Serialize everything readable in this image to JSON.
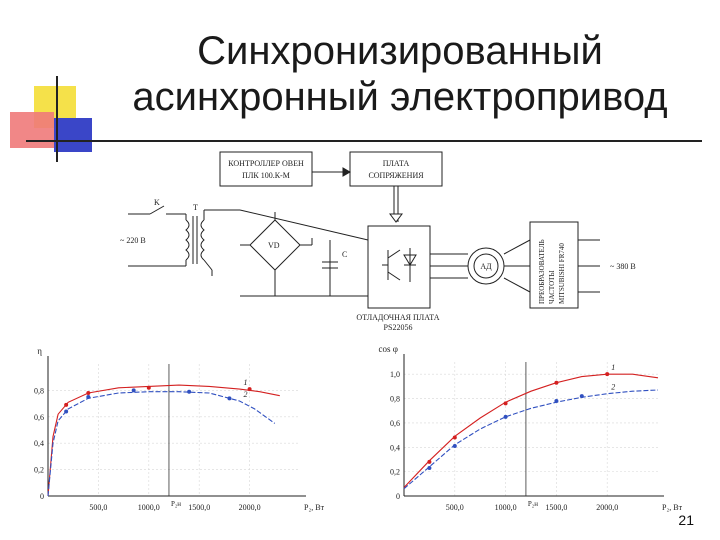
{
  "slide": {
    "title_line1": "Синхронизированный",
    "title_line2": "асинхронный электропривод",
    "page_number": "21"
  },
  "schematic": {
    "controller_line1": "КОНТРОЛЛЕР ОВЕН",
    "controller_line2": "ПЛК 100.К-М",
    "interface_line1": "ПЛАТА",
    "interface_line2": "СОПРЯЖЕНИЯ",
    "switch_label": "K",
    "transformer_label": "T",
    "supply_label": "~ 220 В",
    "bridge_label": "VD",
    "capacitor_label": "C",
    "motor_label": "АД",
    "converter_line1": "ПРЕОБРАЗОВАТЕЛЬ",
    "converter_line2": "ЧАСТОТЫ",
    "converter_line3": "MITSUBISHI FR740",
    "grid_label": "~ 380 В",
    "debug_line1": "ОТЛАДОЧНАЯ ПЛАТА",
    "debug_line2": "PS22056"
  },
  "chart_data": [
    {
      "type": "line",
      "ylabel": "η",
      "xlabel": "P₂, Вт",
      "xlim": [
        0,
        2500
      ],
      "ylim": [
        0,
        1.0
      ],
      "x_ticks": [
        "500,0",
        "1000,0",
        "1500,0",
        "2000,0"
      ],
      "y_ticks": [
        "0",
        "0,2",
        "0,4",
        "0,6",
        "0,8"
      ],
      "marker_label": "P₂н",
      "marker_x": 1200,
      "series": [
        {
          "name": "1",
          "color": "#d42020",
          "x": [
            0,
            50,
            100,
            200,
            400,
            700,
            1000,
            1300,
            1600,
            1900,
            2100,
            2300
          ],
          "y": [
            0,
            0.45,
            0.62,
            0.71,
            0.78,
            0.82,
            0.83,
            0.84,
            0.83,
            0.81,
            0.79,
            0.76
          ],
          "points_x": [
            180,
            400,
            1000,
            2000
          ],
          "points_y": [
            0.69,
            0.78,
            0.82,
            0.81
          ]
        },
        {
          "name": "2",
          "color": "#3050c0",
          "x": [
            0,
            50,
            100,
            200,
            400,
            700,
            1000,
            1300,
            1600,
            1900,
            2050,
            2250
          ],
          "y": [
            0,
            0.4,
            0.57,
            0.66,
            0.74,
            0.78,
            0.79,
            0.79,
            0.78,
            0.72,
            0.66,
            0.55
          ],
          "points_x": [
            180,
            400,
            850,
            1400,
            1800
          ],
          "points_y": [
            0.64,
            0.75,
            0.8,
            0.79,
            0.74
          ]
        }
      ]
    },
    {
      "type": "line",
      "ylabel": "cos φ",
      "xlabel": "P₂, Вт",
      "xlim": [
        0,
        2500
      ],
      "ylim": [
        0,
        1.1
      ],
      "x_ticks": [
        "500,0",
        "1000,0",
        "1500,0",
        "2000,0"
      ],
      "y_ticks": [
        "0",
        "0,2",
        "0,4",
        "0,6",
        "0,8",
        "1,0"
      ],
      "marker_label": "P₂н",
      "marker_x": 1200,
      "series": [
        {
          "name": "1",
          "color": "#d42020",
          "x": [
            0,
            250,
            500,
            750,
            1000,
            1250,
            1500,
            1750,
            2000,
            2250,
            2500
          ],
          "y": [
            0.07,
            0.29,
            0.49,
            0.64,
            0.77,
            0.86,
            0.93,
            0.98,
            1.0,
            1.0,
            0.97
          ],
          "points_x": [
            250,
            500,
            1000,
            1500,
            2000
          ],
          "points_y": [
            0.28,
            0.48,
            0.76,
            0.93,
            1.0
          ]
        },
        {
          "name": "2",
          "color": "#3050c0",
          "x": [
            0,
            250,
            500,
            750,
            1000,
            1250,
            1500,
            1750,
            2000,
            2250,
            2500
          ],
          "y": [
            0.06,
            0.24,
            0.42,
            0.55,
            0.65,
            0.72,
            0.77,
            0.81,
            0.84,
            0.86,
            0.87
          ],
          "points_x": [
            250,
            500,
            1000,
            1500,
            1750
          ],
          "points_y": [
            0.23,
            0.41,
            0.65,
            0.78,
            0.82
          ]
        }
      ]
    }
  ]
}
